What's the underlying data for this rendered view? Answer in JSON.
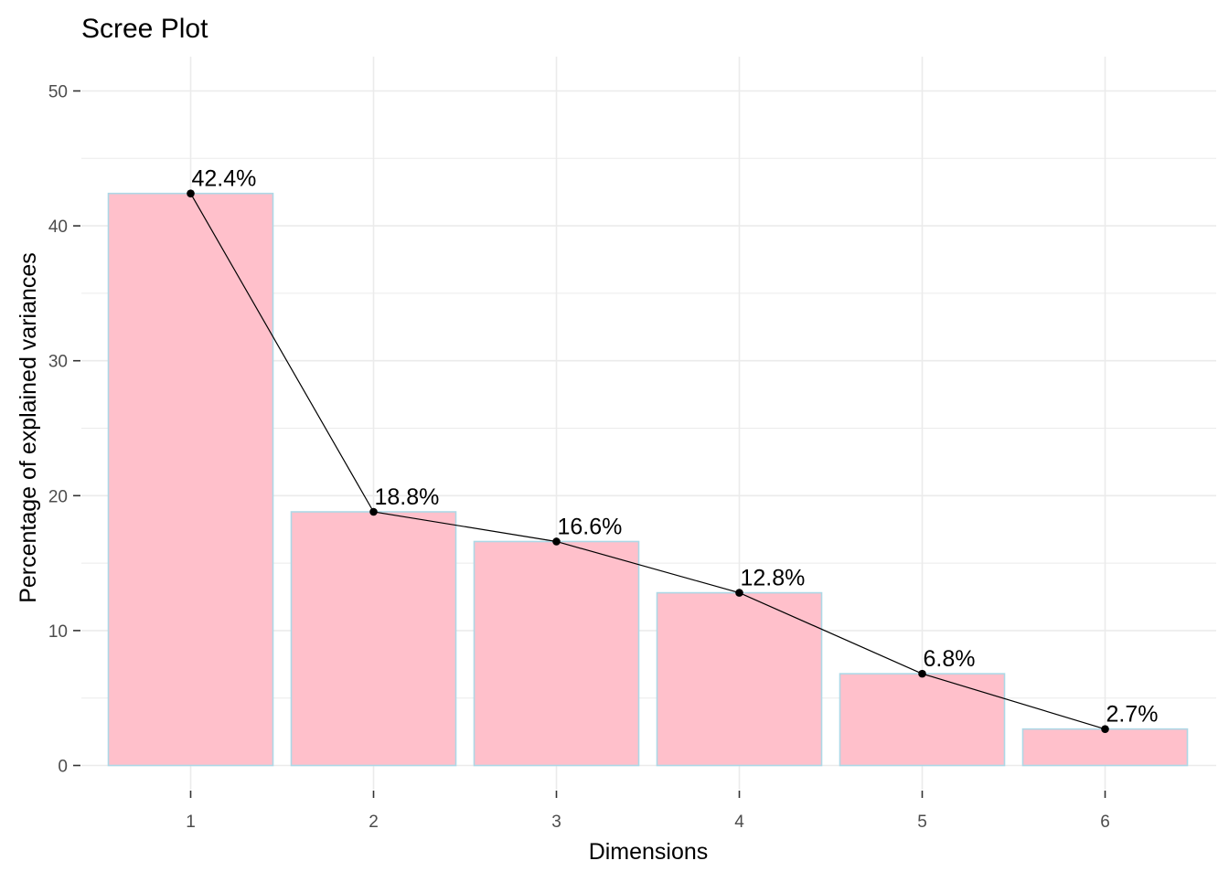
{
  "chart_data": {
    "type": "bar",
    "title": "Scree Plot",
    "xlabel": "Dimensions",
    "ylabel": "Percentage of explained variances",
    "categories": [
      "1",
      "2",
      "3",
      "4",
      "5",
      "6"
    ],
    "values": [
      42.4,
      18.8,
      16.6,
      12.8,
      6.8,
      2.7
    ],
    "data_labels": [
      "42.4%",
      "18.8%",
      "16.6%",
      "12.8%",
      "6.8%",
      "2.7%"
    ],
    "ylim": [
      0,
      52
    ],
    "yticks": [
      0,
      10,
      20,
      30,
      40,
      50
    ],
    "grid": true,
    "overlay": "line with points connecting bar tops",
    "legend": "none",
    "colors": {
      "bar_fill": "#FFC0CB",
      "bar_outline": "#ADD8E6",
      "line": "#000000",
      "grid": "#EBEBEB"
    }
  }
}
